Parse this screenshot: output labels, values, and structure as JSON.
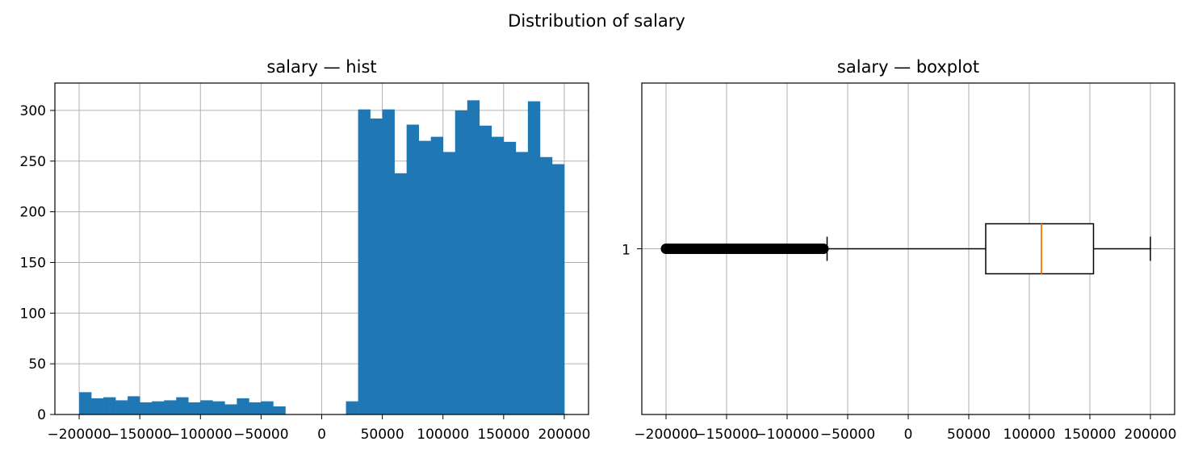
{
  "figure": {
    "suptitle": "Distribution of salary"
  },
  "chart_data": [
    {
      "type": "bar",
      "subtype": "histogram",
      "title": "salary — hist",
      "xlabel": "",
      "ylabel": "",
      "xlim": [
        -220000,
        220000
      ],
      "ylim": [
        0,
        327
      ],
      "grid": true,
      "color": "#1f77b4",
      "bin_width": 10000,
      "bins": [
        {
          "x0": -200000,
          "x1": -190000,
          "count": 22
        },
        {
          "x0": -190000,
          "x1": -180000,
          "count": 16
        },
        {
          "x0": -180000,
          "x1": -170000,
          "count": 17
        },
        {
          "x0": -170000,
          "x1": -160000,
          "count": 14
        },
        {
          "x0": -160000,
          "x1": -150000,
          "count": 18
        },
        {
          "x0": -150000,
          "x1": -140000,
          "count": 12
        },
        {
          "x0": -140000,
          "x1": -130000,
          "count": 13
        },
        {
          "x0": -130000,
          "x1": -120000,
          "count": 14
        },
        {
          "x0": -120000,
          "x1": -110000,
          "count": 17
        },
        {
          "x0": -110000,
          "x1": -100000,
          "count": 12
        },
        {
          "x0": -100000,
          "x1": -90000,
          "count": 14
        },
        {
          "x0": -90000,
          "x1": -80000,
          "count": 13
        },
        {
          "x0": -80000,
          "x1": -70000,
          "count": 10
        },
        {
          "x0": -70000,
          "x1": -60000,
          "count": 16
        },
        {
          "x0": -60000,
          "x1": -50000,
          "count": 12
        },
        {
          "x0": -50000,
          "x1": -40000,
          "count": 13
        },
        {
          "x0": -40000,
          "x1": -30000,
          "count": 8
        },
        {
          "x0": -30000,
          "x1": -20000,
          "count": 0
        },
        {
          "x0": -20000,
          "x1": -10000,
          "count": 0
        },
        {
          "x0": -10000,
          "x1": 0,
          "count": 0
        },
        {
          "x0": 0,
          "x1": 10000,
          "count": 0
        },
        {
          "x0": 10000,
          "x1": 20000,
          "count": 0
        },
        {
          "x0": 20000,
          "x1": 30000,
          "count": 13
        },
        {
          "x0": 30000,
          "x1": 40000,
          "count": 301
        },
        {
          "x0": 40000,
          "x1": 50000,
          "count": 292
        },
        {
          "x0": 50000,
          "x1": 60000,
          "count": 301
        },
        {
          "x0": 60000,
          "x1": 70000,
          "count": 238
        },
        {
          "x0": 70000,
          "x1": 80000,
          "count": 286
        },
        {
          "x0": 80000,
          "x1": 90000,
          "count": 270
        },
        {
          "x0": 90000,
          "x1": 100000,
          "count": 274
        },
        {
          "x0": 100000,
          "x1": 110000,
          "count": 259
        },
        {
          "x0": 110000,
          "x1": 120000,
          "count": 300
        },
        {
          "x0": 120000,
          "x1": 130000,
          "count": 310
        },
        {
          "x0": 130000,
          "x1": 140000,
          "count": 285
        },
        {
          "x0": 140000,
          "x1": 150000,
          "count": 274
        },
        {
          "x0": 150000,
          "x1": 160000,
          "count": 269
        },
        {
          "x0": 160000,
          "x1": 170000,
          "count": 259
        },
        {
          "x0": 170000,
          "x1": 180000,
          "count": 309
        },
        {
          "x0": 180000,
          "x1": 190000,
          "count": 254
        },
        {
          "x0": 190000,
          "x1": 200000,
          "count": 247
        }
      ],
      "xticks": [
        -200000,
        -150000,
        -100000,
        -50000,
        0,
        50000,
        100000,
        150000,
        200000
      ],
      "xtick_labels": [
        "−200000",
        "−150000",
        "−100000",
        "−50000",
        "0",
        "50000",
        "100000",
        "150000",
        "200000"
      ],
      "yticks": [
        0,
        50,
        100,
        150,
        200,
        250,
        300
      ],
      "ytick_labels": [
        "0",
        "50",
        "100",
        "150",
        "200",
        "250",
        "300"
      ]
    },
    {
      "type": "boxplot",
      "title": "salary — boxplot",
      "orientation": "horizontal",
      "xlim": [
        -220000,
        220000
      ],
      "grid": true,
      "category_labels": [
        "1"
      ],
      "box_color": "#000000",
      "median_color": "#ff7f0e",
      "stats": {
        "whisker_low": -67000,
        "q1": 64000,
        "median": 110000,
        "q3": 153000,
        "whisker_high": 200000
      },
      "outliers": [
        -200000,
        -198000,
        -196000,
        -194000,
        -192000,
        -190000,
        -188000,
        -186000,
        -184000,
        -182000,
        -180000,
        -178000,
        -176000,
        -174000,
        -172000,
        -170000,
        -168000,
        -166000,
        -164000,
        -162000,
        -160000,
        -158000,
        -156000,
        -154000,
        -152000,
        -150000,
        -148000,
        -146000,
        -144000,
        -142000,
        -140000,
        -138000,
        -136000,
        -134000,
        -132000,
        -130000,
        -128000,
        -126000,
        -124000,
        -122000,
        -120000,
        -118000,
        -116000,
        -114000,
        -112000,
        -110000,
        -108000,
        -106000,
        -104000,
        -102000,
        -100000,
        -98000,
        -96000,
        -94000,
        -92000,
        -90000,
        -88000,
        -86000,
        -84000,
        -82000,
        -80000,
        -78000,
        -76000,
        -74000,
        -72000,
        -70000
      ],
      "xticks": [
        -200000,
        -150000,
        -100000,
        -50000,
        0,
        50000,
        100000,
        150000,
        200000
      ],
      "xtick_labels": [
        "−200000",
        "−150000",
        "−100000",
        "−50000",
        "0",
        "50000",
        "100000",
        "150000",
        "200000"
      ]
    }
  ]
}
